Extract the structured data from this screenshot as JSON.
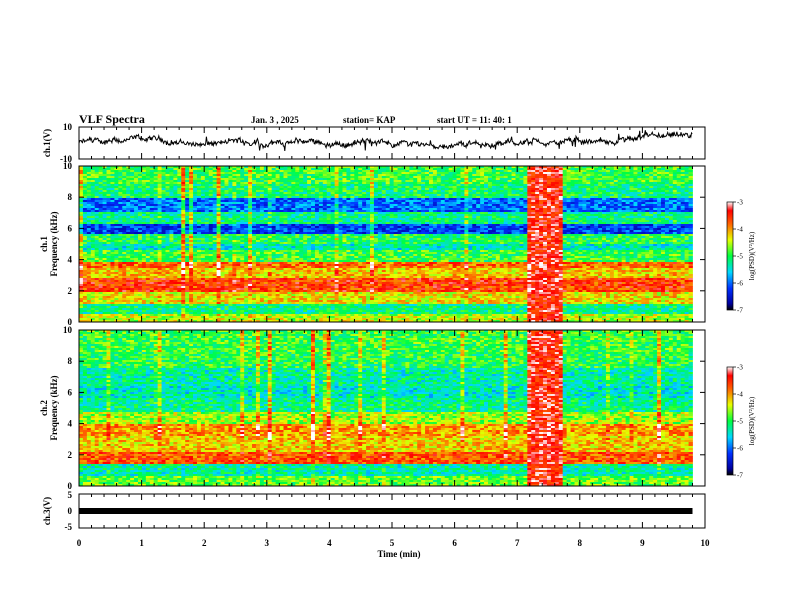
{
  "header": {
    "title": "VLF Spectra",
    "date": "Jan. 3 , 2025",
    "station": "station= KAP",
    "start": "start  UT =   11: 40: 1"
  },
  "chart_data": [
    {
      "type": "line",
      "name": "ch1-waveform",
      "ylabel": "ch.1(V)",
      "ylim": [
        -10,
        10
      ],
      "ytick_labels": [
        "10",
        "-10"
      ],
      "xlim": [
        0,
        10
      ],
      "x_end_data": 9.8,
      "envelope_minmax": [
        -6,
        6
      ]
    },
    {
      "type": "heatmap",
      "name": "ch1-spectrogram",
      "ylabel_channel": "ch.1",
      "ylabel": "Frequency (kHz)",
      "ylim": [
        0,
        10
      ],
      "ytick_labels": [
        "0",
        "2",
        "4",
        "6",
        "8",
        "10"
      ],
      "xlim": [
        0,
        10
      ],
      "x_end_data": 9.8,
      "bands": [
        {
          "f0": 0.0,
          "f1": 0.5,
          "level": -4.5
        },
        {
          "f0": 0.5,
          "f1": 1.2,
          "level": -5.2
        },
        {
          "f0": 1.2,
          "f1": 1.9,
          "level": -4.3
        },
        {
          "f0": 1.9,
          "f1": 2.8,
          "level": -3.6
        },
        {
          "f0": 2.8,
          "f1": 3.5,
          "level": -4.2
        },
        {
          "f0": 3.5,
          "f1": 3.9,
          "level": -3.8
        },
        {
          "f0": 3.9,
          "f1": 4.6,
          "level": -4.9
        },
        {
          "f0": 4.6,
          "f1": 5.0,
          "level": -5.4
        },
        {
          "f0": 5.0,
          "f1": 5.6,
          "level": -5.0
        },
        {
          "f0": 5.6,
          "f1": 6.3,
          "level": -6.2
        },
        {
          "f0": 6.3,
          "f1": 7.0,
          "level": -5.2
        },
        {
          "f0": 7.0,
          "f1": 7.9,
          "level": -6.0
        },
        {
          "f0": 7.9,
          "f1": 8.8,
          "level": -5.1
        },
        {
          "f0": 8.8,
          "f1": 10.0,
          "level": -4.9
        }
      ],
      "burst": {
        "t0": 7.15,
        "t1": 7.75,
        "level": -3.4
      }
    },
    {
      "type": "heatmap",
      "name": "ch2-spectrogram",
      "ylabel_channel": "ch.2",
      "ylabel": "Frequency (kHz)",
      "ylim": [
        0,
        10
      ],
      "ytick_labels": [
        "0",
        "2",
        "4",
        "6",
        "8",
        "10"
      ],
      "xlim": [
        0,
        10
      ],
      "x_end_data": 9.8,
      "bands": [
        {
          "f0": 0.0,
          "f1": 0.6,
          "level": -4.8
        },
        {
          "f0": 0.6,
          "f1": 1.4,
          "level": -5.3
        },
        {
          "f0": 1.4,
          "f1": 2.2,
          "level": -3.7
        },
        {
          "f0": 2.2,
          "f1": 3.2,
          "level": -4.2
        },
        {
          "f0": 3.2,
          "f1": 4.0,
          "level": -4.0
        },
        {
          "f0": 4.0,
          "f1": 4.8,
          "level": -4.6
        },
        {
          "f0": 4.8,
          "f1": 5.6,
          "level": -5.2
        },
        {
          "f0": 5.6,
          "f1": 6.4,
          "level": -5.4
        },
        {
          "f0": 6.4,
          "f1": 7.6,
          "level": -5.3
        },
        {
          "f0": 7.6,
          "f1": 8.6,
          "level": -5.0
        },
        {
          "f0": 8.6,
          "f1": 10.0,
          "level": -4.9
        }
      ],
      "burst": {
        "t0": 7.15,
        "t1": 7.75,
        "level": -3.4
      }
    },
    {
      "type": "line",
      "name": "ch3-trace",
      "ylabel": "ch.3(V)",
      "ylim": [
        -5,
        5
      ],
      "ytick_labels": [
        "5",
        "0",
        "-5"
      ],
      "xlim": [
        0,
        10
      ],
      "x_end_data": 9.8,
      "value": 0
    }
  ],
  "x_axis": {
    "label": "Time (min)",
    "tick_labels": [
      "0",
      "1",
      "2",
      "3",
      "4",
      "5",
      "6",
      "7",
      "8",
      "9",
      "10"
    ]
  },
  "colorbar": {
    "label": "log(PSD)(V²/Hz)",
    "range": [
      -7,
      -3
    ],
    "tick_labels": [
      "-3",
      "-4",
      "-5",
      "-6",
      "-7"
    ]
  }
}
